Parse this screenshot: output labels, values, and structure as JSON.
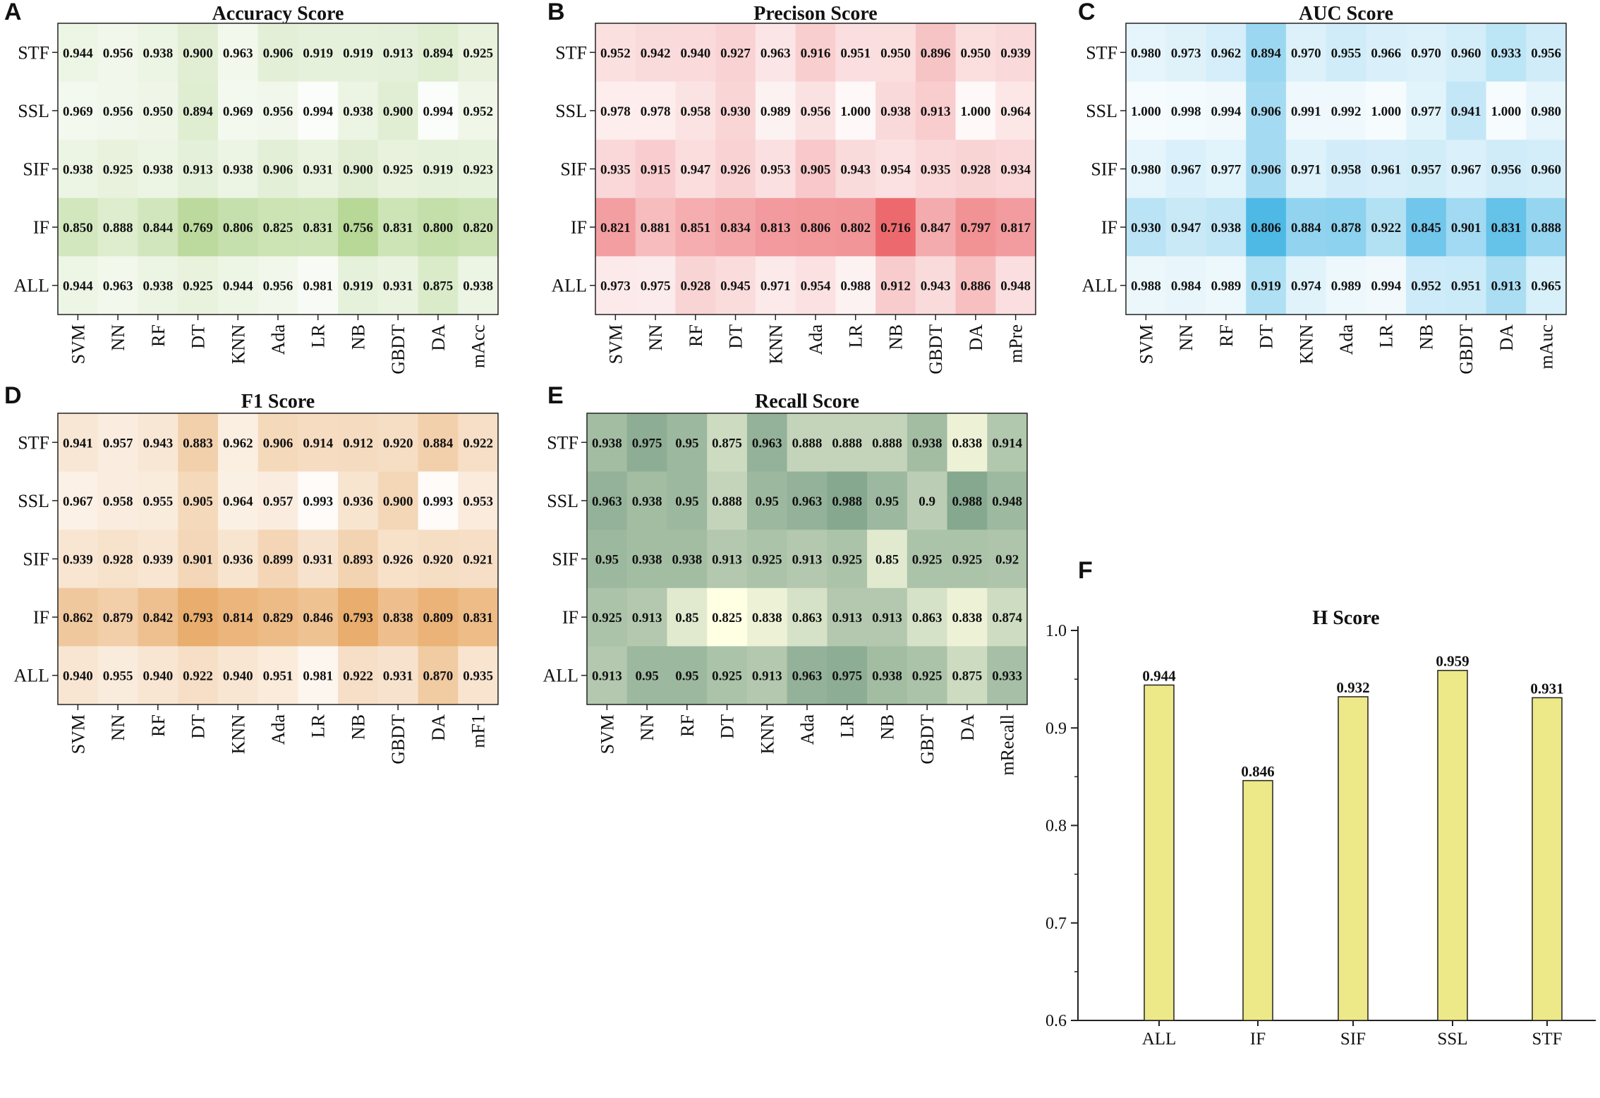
{
  "colors": {
    "accuracy": "#b8d898",
    "precision": "#ec6a6e",
    "auc": "#4fb9e6",
    "f1": "#e9ad6d",
    "recall_low": "#ffffe4",
    "recall_high": "#86a88f",
    "bar_fill": "#ede888",
    "bar_stroke": "#222222"
  },
  "chart_data": [
    {
      "type": "heatmap",
      "letter": "A",
      "title": "Accuracy Score",
      "color_key": "accuracy",
      "rows": [
        "STF",
        "SSL",
        "SIF",
        "IF",
        "ALL"
      ],
      "cols": [
        "SVM",
        "NN",
        "RF",
        "DT",
        "KNN",
        "Ada",
        "LR",
        "NB",
        "GBDT",
        "DA",
        "mAcc"
      ],
      "labels": [
        [
          "0.944",
          "0.956",
          "0.938",
          "0.900",
          "0.963",
          "0.906",
          "0.919",
          "0.919",
          "0.913",
          "0.894",
          "0.925"
        ],
        [
          "0.969",
          "0.956",
          "0.950",
          "0.894",
          "0.969",
          "0.956",
          "0.994",
          "0.938",
          "0.900",
          "0.994",
          "0.952"
        ],
        [
          "0.938",
          "0.925",
          "0.938",
          "0.913",
          "0.938",
          "0.906",
          "0.931",
          "0.900",
          "0.925",
          "0.919",
          "0.923"
        ],
        [
          "0.850",
          "0.888",
          "0.844",
          "0.769",
          "0.806",
          "0.825",
          "0.831",
          "0.756",
          "0.831",
          "0.800",
          "0.820"
        ],
        [
          "0.944",
          "0.963",
          "0.938",
          "0.925",
          "0.944",
          "0.956",
          "0.981",
          "0.919",
          "0.931",
          "0.875",
          "0.938"
        ]
      ]
    },
    {
      "type": "heatmap",
      "letter": "B",
      "title": "Precison Score",
      "color_key": "precision",
      "rows": [
        "STF",
        "SSL",
        "SIF",
        "IF",
        "ALL"
      ],
      "cols": [
        "SVM",
        "NN",
        "RF",
        "DT",
        "KNN",
        "Ada",
        "LR",
        "NB",
        "GBDT",
        "DA",
        "mPre"
      ],
      "labels": [
        [
          "0.952",
          "0.942",
          "0.940",
          "0.927",
          "0.963",
          "0.916",
          "0.951",
          "0.950",
          "0.896",
          "0.950",
          "0.939"
        ],
        [
          "0.978",
          "0.978",
          "0.958",
          "0.930",
          "0.989",
          "0.956",
          "1.000",
          "0.938",
          "0.913",
          "1.000",
          "0.964"
        ],
        [
          "0.935",
          "0.915",
          "0.947",
          "0.926",
          "0.953",
          "0.905",
          "0.943",
          "0.954",
          "0.935",
          "0.928",
          "0.934"
        ],
        [
          "0.821",
          "0.881",
          "0.851",
          "0.834",
          "0.813",
          "0.806",
          "0.802",
          "0.716",
          "0.847",
          "0.797",
          "0.817"
        ],
        [
          "0.973",
          "0.975",
          "0.928",
          "0.945",
          "0.971",
          "0.954",
          "0.988",
          "0.912",
          "0.943",
          "0.886",
          "0.948"
        ]
      ]
    },
    {
      "type": "heatmap",
      "letter": "C",
      "title": "AUC Score",
      "color_key": "auc",
      "rows": [
        "STF",
        "SSL",
        "SIF",
        "IF",
        "ALL"
      ],
      "cols": [
        "SVM",
        "NN",
        "RF",
        "DT",
        "KNN",
        "Ada",
        "LR",
        "NB",
        "GBDT",
        "DA",
        "mAuc"
      ],
      "labels": [
        [
          "0.980",
          "0.973",
          "0.962",
          "0.894",
          "0.970",
          "0.955",
          "0.966",
          "0.970",
          "0.960",
          "0.933",
          "0.956"
        ],
        [
          "1.000",
          "0.998",
          "0.994",
          "0.906",
          "0.991",
          "0.992",
          "1.000",
          "0.977",
          "0.941",
          "1.000",
          "0.980"
        ],
        [
          "0.980",
          "0.967",
          "0.977",
          "0.906",
          "0.971",
          "0.958",
          "0.961",
          "0.957",
          "0.967",
          "0.956",
          "0.960"
        ],
        [
          "0.930",
          "0.947",
          "0.938",
          "0.806",
          "0.884",
          "0.878",
          "0.922",
          "0.845",
          "0.901",
          "0.831",
          "0.888"
        ],
        [
          "0.988",
          "0.984",
          "0.989",
          "0.919",
          "0.974",
          "0.989",
          "0.994",
          "0.952",
          "0.951",
          "0.913",
          "0.965"
        ]
      ]
    },
    {
      "type": "heatmap",
      "letter": "D",
      "title": "F1 Score",
      "color_key": "f1",
      "rows": [
        "STF",
        "SSL",
        "SIF",
        "IF",
        "ALL"
      ],
      "cols": [
        "SVM",
        "NN",
        "RF",
        "DT",
        "KNN",
        "Ada",
        "LR",
        "NB",
        "GBDT",
        "DA",
        "mF1"
      ],
      "labels": [
        [
          "0.941",
          "0.957",
          "0.943",
          "0.883",
          "0.962",
          "0.906",
          "0.914",
          "0.912",
          "0.920",
          "0.884",
          "0.922"
        ],
        [
          "0.967",
          "0.958",
          "0.955",
          "0.905",
          "0.964",
          "0.957",
          "0.993",
          "0.936",
          "0.900",
          "0.993",
          "0.953"
        ],
        [
          "0.939",
          "0.928",
          "0.939",
          "0.901",
          "0.936",
          "0.899",
          "0.931",
          "0.893",
          "0.926",
          "0.920",
          "0.921"
        ],
        [
          "0.862",
          "0.879",
          "0.842",
          "0.793",
          "0.814",
          "0.829",
          "0.846",
          "0.793",
          "0.838",
          "0.809",
          "0.831"
        ],
        [
          "0.940",
          "0.955",
          "0.940",
          "0.922",
          "0.940",
          "0.951",
          "0.981",
          "0.922",
          "0.931",
          "0.870",
          "0.935"
        ]
      ]
    },
    {
      "type": "heatmap",
      "letter": "E",
      "title": "Recall Score",
      "color_key": "recall",
      "rows": [
        "STF",
        "SSL",
        "SIF",
        "IF",
        "ALL"
      ],
      "cols": [
        "SVM",
        "NN",
        "RF",
        "DT",
        "KNN",
        "Ada",
        "LR",
        "NB",
        "GBDT",
        "DA",
        "mRecall"
      ],
      "labels": [
        [
          "0.938",
          "0.975",
          "0.95",
          "0.875",
          "0.963",
          "0.888",
          "0.888",
          "0.888",
          "0.938",
          "0.838",
          "0.914"
        ],
        [
          "0.963",
          "0.938",
          "0.95",
          "0.888",
          "0.95",
          "0.963",
          "0.988",
          "0.95",
          "0.9",
          "0.988",
          "0.948"
        ],
        [
          "0.95",
          "0.938",
          "0.938",
          "0.913",
          "0.925",
          "0.913",
          "0.925",
          "0.85",
          "0.925",
          "0.925",
          "0.92"
        ],
        [
          "0.925",
          "0.913",
          "0.85",
          "0.825",
          "0.838",
          "0.863",
          "0.913",
          "0.913",
          "0.863",
          "0.838",
          "0.874"
        ],
        [
          "0.913",
          "0.95",
          "0.95",
          "0.925",
          "0.913",
          "0.963",
          "0.975",
          "0.938",
          "0.925",
          "0.875",
          "0.933"
        ]
      ]
    },
    {
      "type": "bar",
      "letter": "F",
      "title": "H Score",
      "categories": [
        "ALL",
        "IF",
        "SIF",
        "SSL",
        "STF"
      ],
      "values": [
        0.944,
        0.846,
        0.932,
        0.959,
        0.931
      ],
      "value_labels": [
        "0.944",
        "0.846",
        "0.932",
        "0.959",
        "0.931"
      ],
      "ylim": [
        0.6,
        1.0
      ],
      "yticks": [
        "0.6",
        "0.7",
        "0.8",
        "0.9",
        "1.0"
      ],
      "xlabel": "",
      "ylabel": ""
    }
  ]
}
